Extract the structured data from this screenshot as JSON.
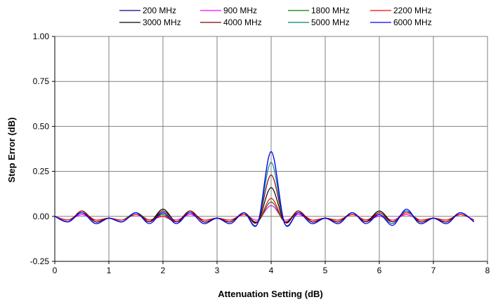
{
  "chart_data": {
    "type": "line",
    "xlabel": "Attenuation Setting (dB)",
    "ylabel": "Step Error (dB)",
    "xlim": [
      0,
      8
    ],
    "ylim": [
      -0.25,
      1.0
    ],
    "xticks": [
      "0",
      "1",
      "2",
      "3",
      "4",
      "5",
      "6",
      "7",
      "8"
    ],
    "yticks": [
      "-0.25",
      "0.00",
      "0.25",
      "0.50",
      "0.75",
      "1.00"
    ],
    "grid": true,
    "legend_position": "top",
    "x": [
      0,
      0.25,
      0.5,
      0.75,
      1.0,
      1.25,
      1.5,
      1.75,
      2.0,
      2.25,
      2.5,
      2.75,
      3.0,
      3.25,
      3.5,
      3.75,
      4.0,
      4.25,
      4.5,
      4.75,
      5.0,
      5.25,
      5.5,
      5.75,
      6.0,
      6.25,
      6.5,
      6.75,
      7.0,
      7.25,
      7.5,
      7.75
    ],
    "series": [
      {
        "name": "200 MHz",
        "color": "#000080",
        "values": [
          0.0,
          -0.03,
          0.02,
          -0.03,
          -0.01,
          -0.03,
          0.02,
          -0.03,
          0.02,
          -0.04,
          0.03,
          -0.03,
          -0.01,
          -0.03,
          0.02,
          -0.04,
          0.36,
          -0.04,
          0.02,
          -0.03,
          -0.01,
          -0.03,
          0.02,
          -0.03,
          0.01,
          -0.04,
          0.03,
          -0.03,
          -0.01,
          -0.03,
          0.02,
          -0.03
        ]
      },
      {
        "name": "900 MHz",
        "color": "#ff00ff",
        "values": [
          0.0,
          -0.02,
          0.01,
          -0.02,
          -0.01,
          -0.02,
          0.01,
          -0.02,
          0.0,
          -0.02,
          0.01,
          -0.02,
          -0.01,
          -0.02,
          0.01,
          -0.02,
          0.06,
          -0.02,
          0.01,
          -0.02,
          -0.01,
          -0.02,
          0.01,
          -0.02,
          0.0,
          -0.02,
          0.01,
          -0.02,
          -0.01,
          -0.02,
          0.01,
          -0.02
        ]
      },
      {
        "name": "1800 MHz",
        "color": "#008000",
        "values": [
          0.0,
          -0.02,
          0.02,
          -0.02,
          -0.01,
          -0.02,
          0.02,
          -0.02,
          0.01,
          -0.03,
          0.02,
          -0.02,
          -0.01,
          -0.02,
          0.01,
          -0.03,
          0.08,
          -0.03,
          0.02,
          -0.02,
          -0.01,
          -0.02,
          0.01,
          -0.02,
          0.01,
          -0.03,
          0.02,
          -0.02,
          -0.01,
          -0.02,
          0.01,
          -0.02
        ]
      },
      {
        "name": "2200 MHz",
        "color": "#ff0000",
        "values": [
          0.0,
          -0.02,
          0.02,
          -0.02,
          -0.01,
          -0.02,
          0.01,
          -0.02,
          0.0,
          -0.03,
          0.02,
          -0.02,
          -0.01,
          -0.02,
          0.01,
          -0.03,
          0.1,
          -0.03,
          0.02,
          -0.02,
          -0.01,
          -0.02,
          0.01,
          -0.02,
          0.01,
          -0.03,
          0.02,
          -0.02,
          -0.01,
          -0.02,
          0.01,
          -0.02
        ]
      },
      {
        "name": "3000 MHz",
        "color": "#000000",
        "values": [
          0.0,
          -0.03,
          0.03,
          -0.03,
          -0.01,
          -0.03,
          0.02,
          -0.03,
          0.04,
          -0.03,
          0.03,
          -0.03,
          -0.01,
          -0.03,
          0.02,
          -0.03,
          0.16,
          -0.03,
          0.03,
          -0.03,
          -0.01,
          -0.03,
          0.02,
          -0.03,
          0.03,
          -0.03,
          0.03,
          -0.03,
          -0.01,
          -0.03,
          0.02,
          -0.03
        ]
      },
      {
        "name": "4000 MHz",
        "color": "#800000",
        "values": [
          0.0,
          -0.03,
          0.03,
          -0.03,
          -0.01,
          -0.03,
          0.02,
          -0.03,
          0.03,
          -0.03,
          0.03,
          -0.03,
          -0.01,
          -0.03,
          0.02,
          -0.03,
          0.23,
          -0.03,
          0.03,
          -0.03,
          -0.01,
          -0.03,
          0.02,
          -0.03,
          0.02,
          -0.03,
          0.03,
          -0.03,
          -0.01,
          -0.03,
          0.02,
          -0.03
        ]
      },
      {
        "name": "5000 MHz",
        "color": "#008080",
        "values": [
          0.0,
          -0.03,
          0.02,
          -0.04,
          -0.01,
          -0.03,
          0.02,
          -0.04,
          0.02,
          -0.04,
          0.02,
          -0.04,
          -0.01,
          -0.04,
          0.02,
          -0.04,
          0.3,
          -0.04,
          0.02,
          -0.04,
          -0.01,
          -0.04,
          0.02,
          -0.04,
          0.01,
          -0.04,
          0.03,
          -0.04,
          -0.01,
          -0.04,
          0.02,
          -0.03
        ]
      },
      {
        "name": "6000 MHz",
        "color": "#0000ff",
        "values": [
          0.0,
          -0.03,
          0.02,
          -0.04,
          -0.01,
          -0.03,
          0.02,
          -0.04,
          0.02,
          -0.04,
          0.02,
          -0.04,
          -0.01,
          -0.04,
          0.02,
          -0.04,
          0.36,
          -0.04,
          0.02,
          -0.04,
          -0.01,
          -0.04,
          0.02,
          -0.04,
          0.01,
          -0.05,
          0.04,
          -0.04,
          -0.01,
          -0.04,
          0.02,
          -0.03
        ]
      }
    ]
  }
}
